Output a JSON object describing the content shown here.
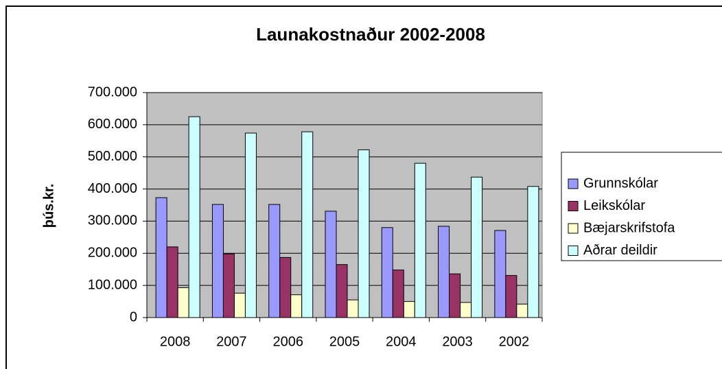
{
  "chart_data": {
    "type": "bar",
    "title": "Launakostnaður 2002-2008",
    "y_label": "þús.kr.",
    "categories": [
      "2008",
      "2007",
      "2006",
      "2005",
      "2004",
      "2003",
      "2002"
    ],
    "series": [
      {
        "name": "Grunnskólar",
        "color": "#9999ff",
        "values": [
          373000,
          352000,
          352000,
          331000,
          280000,
          284000,
          271000
        ]
      },
      {
        "name": "Leikskólar",
        "color": "#993366",
        "values": [
          220000,
          198000,
          187000,
          165000,
          148000,
          136000,
          131000
        ]
      },
      {
        "name": "Bæjarskrifstofa",
        "color": "#ffffcc",
        "values": [
          93000,
          76000,
          71000,
          55000,
          50000,
          47000,
          42000
        ]
      },
      {
        "name": "Aðrar deildir",
        "color": "#ccffff",
        "values": [
          625000,
          574000,
          578000,
          522000,
          480000,
          437000,
          408000
        ]
      }
    ],
    "ylim": [
      0,
      700000
    ],
    "yticks": [
      0,
      {
        "value": 100000,
        "label": "100.000"
      },
      {
        "value": 200000,
        "label": "200.000"
      },
      {
        "value": 300000,
        "label": "300.000"
      },
      {
        "value": 400000,
        "label": "400.000"
      },
      {
        "value": 500000,
        "label": "500.000"
      },
      {
        "value": 600000,
        "label": "600.000"
      },
      {
        "value": 700000,
        "label": "700.000"
      }
    ],
    "grid": true,
    "legend": "right"
  }
}
